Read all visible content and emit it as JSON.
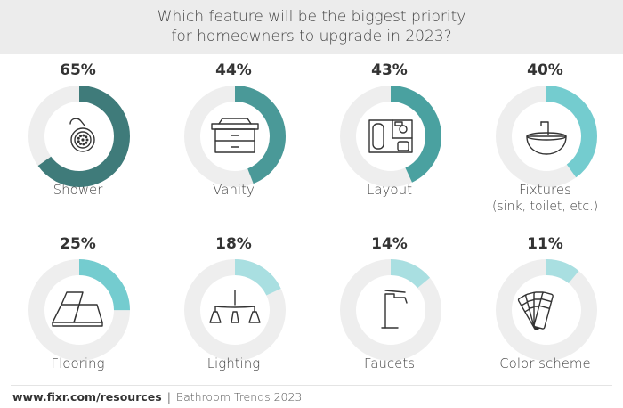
{
  "title_line1": "Which feature will be the biggest priority",
  "title_line2": "for homeowners to upgrade in 2023?",
  "footer": {
    "site": "www.fixr.com/resources",
    "separator": "|",
    "text": "Bathroom Trends 2023"
  },
  "colors": {
    "track": "#eeeeee",
    "dark": "#3f7b7a",
    "mid": "#4aa7a7",
    "light": "#74cccf",
    "pale": "#a9dfe1"
  },
  "chart_data": {
    "type": "donut",
    "title": "Which feature will be the biggest priority for homeowners to upgrade in 2023?",
    "items": [
      {
        "label": "Shower",
        "sublabel": "",
        "value": 65,
        "value_label": "65%",
        "color": "#3f7b7a",
        "icon": "shower-head-icon"
      },
      {
        "label": "Vanity",
        "sublabel": "",
        "value": 44,
        "value_label": "44%",
        "color": "#4a9998",
        "icon": "vanity-cabinet-icon"
      },
      {
        "label": "Layout",
        "sublabel": "",
        "value": 43,
        "value_label": "43%",
        "color": "#4aa1a0",
        "icon": "floor-plan-icon"
      },
      {
        "label": "Fixtures",
        "sublabel": "(sink, toilet, etc.)",
        "value": 40,
        "value_label": "40%",
        "color": "#74cccf",
        "icon": "sink-basin-icon"
      },
      {
        "label": "Flooring",
        "sublabel": "",
        "value": 25,
        "value_label": "25%",
        "color": "#74cccf",
        "icon": "floor-tiles-icon"
      },
      {
        "label": "Lighting",
        "sublabel": "",
        "value": 18,
        "value_label": "18%",
        "color": "#a9dfe1",
        "icon": "chandelier-icon"
      },
      {
        "label": "Faucets",
        "sublabel": "",
        "value": 14,
        "value_label": "14%",
        "color": "#a9dfe1",
        "icon": "faucet-icon"
      },
      {
        "label": "Color scheme",
        "sublabel": "",
        "value": 11,
        "value_label": "11%",
        "color": "#a9dfe1",
        "icon": "color-swatch-icon"
      }
    ]
  }
}
